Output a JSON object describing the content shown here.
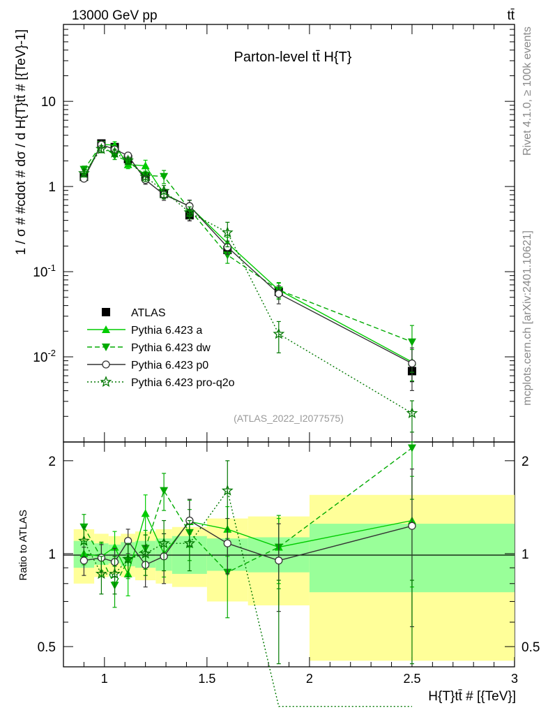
{
  "header": {
    "left": "13000 GeV pp",
    "right": "tt̄"
  },
  "side_labels": {
    "rivet": "Rivet 4.1.0, ≥ 100k events",
    "mcplots": "mcplots.cern.ch [arXiv:2401.10621]"
  },
  "chart_data": {
    "type": "line",
    "title": "Parton-level tt̄  H{T}",
    "watermark": "(ATLAS_2022_I2077575)",
    "xlabel": "H{T}tt̄ # [{TeV}]",
    "ylabel": "1 / σ # #cdot # dσ / d H{T}tt̄ # [{TeV}-1]",
    "ratio_ylabel": "Ratio to ATLAS",
    "xlim": [
      0.8,
      3.0
    ],
    "ylim_log": [
      0.001,
      80
    ],
    "ratio_ylim": [
      0.43,
      2.3
    ],
    "x_ticks": [
      "1",
      "1.5",
      "2",
      "2.5",
      "3"
    ],
    "y_ticks": [
      "10^-2",
      "10^-1",
      "1",
      "10"
    ],
    "ratio_y_ticks": [
      "0.5",
      "1",
      "2"
    ],
    "bins": [
      [
        0.85,
        0.95
      ],
      [
        0.95,
        1.02
      ],
      [
        1.02,
        1.08
      ],
      [
        1.08,
        1.15
      ],
      [
        1.15,
        1.25
      ],
      [
        1.25,
        1.33
      ],
      [
        1.33,
        1.5
      ],
      [
        1.5,
        1.7
      ],
      [
        1.7,
        2.0
      ],
      [
        2.0,
        3.0
      ]
    ],
    "x": [
      0.9,
      0.985,
      1.05,
      1.115,
      1.2,
      1.29,
      1.415,
      1.6,
      1.85,
      2.5
    ],
    "series": [
      {
        "name": "ATLAS",
        "color": "#000000",
        "style": "data",
        "marker": "square",
        "values": [
          1.3,
          3.2,
          2.9,
          2.1,
          1.3,
          0.82,
          0.46,
          0.18,
          0.058,
          0.0068
        ],
        "band_inner": [
          0.1,
          0.08,
          0.07,
          0.09,
          0.1,
          0.12,
          0.14,
          0.12,
          0.13,
          0.25
        ],
        "band_outer": [
          0.2,
          0.16,
          0.14,
          0.16,
          0.18,
          0.2,
          0.22,
          0.3,
          0.32,
          0.55
        ]
      },
      {
        "name": "Pythia 6.423 a",
        "color": "#00cc00",
        "style": "solid",
        "marker": "triangle-up",
        "ratio": [
          1.0,
          0.98,
          1.05,
          0.86,
          1.35,
          1.0,
          1.27,
          1.2,
          1.05,
          1.28
        ],
        "ratio_err": [
          0.08,
          0.1,
          0.13,
          0.13,
          0.2,
          0.16,
          0.22,
          0.22,
          0.25,
          0.5
        ]
      },
      {
        "name": "Pythia 6.423 dw",
        "color": "#00aa00",
        "style": "dashed",
        "marker": "triangle-down",
        "ratio": [
          1.22,
          0.97,
          0.79,
          0.95,
          1.04,
          1.6,
          1.17,
          0.87,
          1.05,
          2.2
        ],
        "ratio_err": [
          0.12,
          0.12,
          0.12,
          0.12,
          0.15,
          0.22,
          0.22,
          0.25,
          0.28,
          0.7
        ]
      },
      {
        "name": "Pythia 6.423 p0",
        "color": "#333333",
        "style": "solid",
        "marker": "circle",
        "ratio": [
          0.95,
          0.97,
          0.94,
          1.1,
          0.92,
          0.98,
          1.28,
          1.08,
          0.95,
          1.23
        ],
        "ratio_err": [
          0.1,
          0.1,
          0.1,
          0.1,
          0.14,
          0.18,
          0.22,
          0.22,
          0.3,
          0.65
        ]
      },
      {
        "name": "Pythia 6.423 pro-q2o",
        "color": "#007700",
        "style": "dotted",
        "marker": "star",
        "ratio": [
          1.1,
          0.86,
          0.86,
          0.96,
          1.0,
          1.08,
          1.08,
          1.6,
          0.32,
          0.32
        ],
        "ratio_err": [
          0.12,
          0.12,
          0.12,
          0.12,
          0.15,
          0.2,
          0.2,
          0.4,
          0.5,
          0.5
        ]
      }
    ]
  }
}
